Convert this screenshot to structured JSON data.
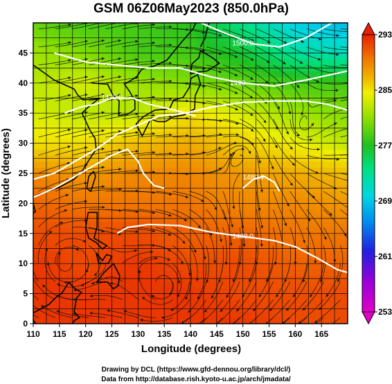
{
  "chart_data": {
    "type": "heatmap",
    "title": "GSM 06Z06May2023 (850.0hPa)",
    "xlabel": "Longitude (degrees)",
    "ylabel": "Latitude  (degrees)",
    "xlim": [
      110,
      170
    ],
    "ylim": [
      0,
      50
    ],
    "x_ticks": [
      110,
      115,
      120,
      125,
      130,
      135,
      140,
      145,
      150,
      155,
      160,
      165
    ],
    "y_ticks": [
      0,
      5,
      10,
      15,
      20,
      25,
      30,
      35,
      40,
      45
    ],
    "grid": true,
    "grid_spacing_deg": 2.5,
    "colorbar": {
      "ticks": [
        253,
        261,
        269,
        277,
        285,
        293
      ],
      "range": [
        253,
        293
      ],
      "colors": [
        "#e000c8",
        "#8800d8",
        "#2020e0",
        "#0090f0",
        "#00d8e0",
        "#00e080",
        "#20c020",
        "#90e000",
        "#f0f000",
        "#f0b000",
        "#f07000",
        "#e82000"
      ]
    },
    "temperature_field_K": {
      "lon": [
        110,
        120,
        130,
        140,
        150,
        160,
        170
      ],
      "lat": [
        50,
        45,
        40,
        35,
        30,
        25,
        20,
        15,
        10,
        5,
        0
      ],
      "values": [
        [
          277,
          276,
          276,
          275,
          271,
          267,
          266
        ],
        [
          279,
          278,
          276,
          276,
          274,
          270,
          269
        ],
        [
          280,
          281,
          279,
          278,
          277,
          276,
          276
        ],
        [
          281,
          280,
          280,
          283,
          281,
          279,
          278
        ],
        [
          283,
          283,
          285,
          286,
          284,
          282,
          280
        ],
        [
          288,
          287,
          288,
          288,
          287,
          286,
          285
        ],
        [
          290,
          289,
          289,
          289,
          288,
          288,
          287
        ],
        [
          291,
          291,
          291,
          290,
          290,
          289,
          289
        ],
        [
          292,
          291,
          292,
          291,
          291,
          290,
          290
        ],
        [
          292,
          292,
          292,
          292,
          291,
          291,
          291
        ],
        [
          292,
          292,
          292,
          292,
          292,
          291,
          291
        ]
      ]
    },
    "contour_labels": [
      "1500.0",
      "1490",
      "1480.0",
      "1470.0",
      "1480.0"
    ],
    "contours": [
      {
        "level": "1500.0",
        "points": [
          [
            142,
            50
          ],
          [
            146,
            48.5
          ],
          [
            152,
            46.5
          ],
          [
            157,
            46
          ],
          [
            162,
            47.5
          ],
          [
            167,
            50
          ]
        ]
      },
      {
        "level": "1490",
        "points": [
          [
            114,
            45
          ],
          [
            120,
            43.5
          ],
          [
            126,
            43
          ],
          [
            132,
            42.5
          ],
          [
            138,
            42.5
          ],
          [
            144,
            41
          ],
          [
            150,
            40
          ],
          [
            156,
            39.5
          ],
          [
            162,
            40.5
          ],
          [
            170,
            42
          ]
        ]
      },
      {
        "level": "1470.0",
        "points": [
          [
            116,
            35
          ],
          [
            119,
            36
          ],
          [
            122,
            36.5
          ],
          [
            125,
            37.5
          ],
          [
            129,
            37.5
          ],
          [
            132,
            36.5
          ],
          [
            137,
            35.5
          ],
          [
            141,
            34.5
          ]
        ]
      },
      {
        "level": "1480.0",
        "points": [
          [
            110,
            24
          ],
          [
            114,
            25
          ],
          [
            118,
            27
          ],
          [
            122,
            29
          ],
          [
            126,
            31.5
          ],
          [
            130,
            33
          ],
          [
            134,
            34.5
          ],
          [
            139,
            35
          ],
          [
            144,
            36
          ],
          [
            150,
            36.8
          ],
          [
            156,
            37
          ],
          [
            162,
            37
          ],
          [
            166,
            36.5
          ],
          [
            170,
            35.5
          ]
        ]
      },
      {
        "level": "1480.0",
        "points": [
          [
            110,
            21
          ],
          [
            114,
            22.5
          ],
          [
            118,
            24.5
          ],
          [
            122,
            26.5
          ],
          [
            125,
            28
          ],
          [
            128,
            29
          ],
          [
            130,
            27
          ],
          [
            131,
            25
          ],
          [
            133,
            23
          ],
          [
            135,
            22.5
          ]
        ]
      },
      {
        "level": "1480.0",
        "points": [
          [
            150,
            22.5
          ],
          [
            152,
            24
          ],
          [
            154,
            24.5
          ],
          [
            156,
            23.5
          ],
          [
            157,
            22
          ]
        ]
      },
      {
        "level": "1480.0",
        "points": [
          [
            126,
            15
          ],
          [
            128,
            16
          ],
          [
            132,
            16.5
          ],
          [
            138,
            16.3
          ],
          [
            144,
            15.2
          ],
          [
            150,
            14.5
          ],
          [
            156,
            13.8
          ],
          [
            160,
            12.8
          ],
          [
            164,
            11
          ],
          [
            168,
            9
          ],
          [
            170,
            8.5
          ]
        ]
      }
    ],
    "vortices": [
      {
        "lon": 161,
        "lat": 32.5
      },
      {
        "lon": 150,
        "lat": 28.5
      },
      {
        "lon": 135,
        "lat": 6
      },
      {
        "lon": 116,
        "lat": 10
      }
    ]
  },
  "credits": {
    "line1": "Drawing by DCL (https://www.gfd-dennou.org/library/dcl/)",
    "line2": "Data from http://database.rish.kyoto-u.ac.jp/arch/jmadata/"
  }
}
